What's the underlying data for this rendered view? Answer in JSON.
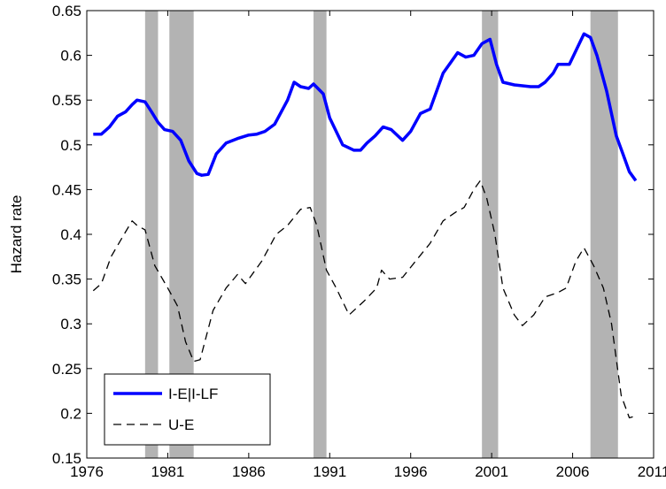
{
  "chart_data": {
    "type": "line",
    "ylabel": "Hazard rate",
    "xlim": [
      1976,
      2011
    ],
    "xticks": [
      1976,
      1981,
      1986,
      1991,
      1996,
      2001,
      2006,
      2011
    ],
    "ylim": [
      0.15,
      0.65
    ],
    "yticks": [
      0.15,
      0.2,
      0.25,
      0.3,
      0.35,
      0.4,
      0.45,
      0.5,
      0.55,
      0.6,
      0.65
    ],
    "legend": "lower left",
    "recessions": [
      [
        1979.6,
        1980.4
      ],
      [
        1981.1,
        1982.6
      ],
      [
        1990.0,
        1990.8
      ],
      [
        2000.4,
        2001.4
      ],
      [
        2007.1,
        2008.8
      ]
    ],
    "recession_color": "#b3b3b3",
    "series": [
      {
        "name": "I-E|I-LF",
        "color": "#0000ff",
        "style": "solid",
        "x": [
          1976.4,
          1976.9,
          1977.4,
          1977.9,
          1978.4,
          1978.8,
          1979.1,
          1979.6,
          1980.0,
          1980.4,
          1980.8,
          1981.3,
          1981.8,
          1982.3,
          1982.8,
          1983.1,
          1983.5,
          1984.0,
          1984.6,
          1985.3,
          1986.0,
          1986.5,
          1987.0,
          1987.6,
          1988.4,
          1988.8,
          1989.2,
          1989.7,
          1990.0,
          1990.6,
          1991.0,
          1991.8,
          1992.5,
          1992.9,
          1993.3,
          1993.8,
          1994.3,
          1994.8,
          1995.5,
          1996.0,
          1996.6,
          1997.2,
          1998.0,
          1998.9,
          1999.4,
          1999.9,
          2000.4,
          2000.9,
          2001.3,
          2001.7,
          2002.4,
          2002.9,
          2003.4,
          2003.9,
          2004.3,
          2004.8,
          2005.1,
          2005.8,
          2006.2,
          2006.7,
          2007.1,
          2007.5,
          2008.1,
          2008.7,
          2009.1,
          2009.5,
          2009.9
        ],
        "values": [
          0.512,
          0.512,
          0.52,
          0.532,
          0.537,
          0.545,
          0.55,
          0.548,
          0.537,
          0.525,
          0.517,
          0.515,
          0.505,
          0.482,
          0.468,
          0.466,
          0.467,
          0.49,
          0.502,
          0.507,
          0.511,
          0.512,
          0.515,
          0.523,
          0.55,
          0.57,
          0.565,
          0.563,
          0.568,
          0.557,
          0.53,
          0.5,
          0.494,
          0.494,
          0.502,
          0.51,
          0.52,
          0.517,
          0.505,
          0.515,
          0.535,
          0.54,
          0.58,
          0.603,
          0.598,
          0.6,
          0.613,
          0.618,
          0.59,
          0.57,
          0.567,
          0.566,
          0.565,
          0.565,
          0.57,
          0.58,
          0.59,
          0.59,
          0.605,
          0.624,
          0.62,
          0.6,
          0.56,
          0.51,
          0.49,
          0.47,
          0.46
        ]
      },
      {
        "name": "U-E",
        "color": "#000000",
        "style": "dashed",
        "x": [
          1976.4,
          1976.9,
          1977.5,
          1978.3,
          1978.8,
          1979.1,
          1979.6,
          1980.2,
          1981.0,
          1981.6,
          1982.1,
          1982.6,
          1983.0,
          1983.8,
          1984.6,
          1985.3,
          1985.8,
          1986.8,
          1987.7,
          1988.4,
          1989.2,
          1989.8,
          1990.2,
          1990.8,
          1991.4,
          1992.2,
          1993.1,
          1993.9,
          1994.2,
          1994.7,
          1995.5,
          1996.3,
          1997.2,
          1998.0,
          1998.8,
          1999.3,
          1999.9,
          2000.3,
          2000.7,
          2001.2,
          2001.7,
          2002.4,
          2002.9,
          2003.6,
          2004.3,
          2005.1,
          2005.6,
          2006.2,
          2006.7,
          2007.3,
          2007.9,
          2008.4,
          2009.0,
          2009.5,
          2009.9
        ],
        "values": [
          0.337,
          0.345,
          0.375,
          0.4,
          0.415,
          0.41,
          0.405,
          0.365,
          0.34,
          0.32,
          0.28,
          0.258,
          0.26,
          0.315,
          0.34,
          0.355,
          0.345,
          0.37,
          0.4,
          0.41,
          0.428,
          0.43,
          0.41,
          0.36,
          0.34,
          0.31,
          0.325,
          0.34,
          0.36,
          0.35,
          0.352,
          0.37,
          0.39,
          0.415,
          0.425,
          0.43,
          0.45,
          0.46,
          0.44,
          0.4,
          0.34,
          0.31,
          0.298,
          0.31,
          0.33,
          0.335,
          0.34,
          0.37,
          0.385,
          0.365,
          0.34,
          0.3,
          0.22,
          0.195,
          0.197
        ]
      }
    ]
  }
}
